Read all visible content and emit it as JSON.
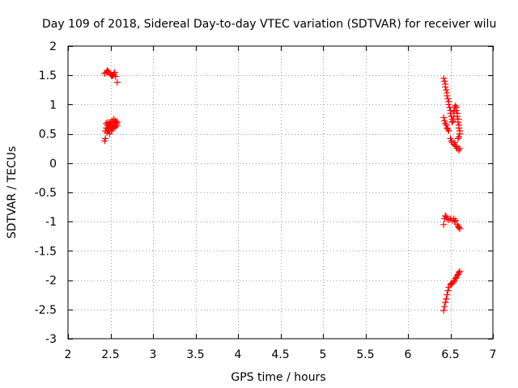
{
  "chart_data": {
    "type": "scatter",
    "title": "Day 109 of 2018, Sidereal Day-to-day VTEC variation (SDTVAR) for receiver wilu",
    "xlabel": "GPS time / hours",
    "ylabel": "SDTVAR / TECUs",
    "xlim": [
      2,
      7
    ],
    "ylim": [
      -3,
      2
    ],
    "xticks": [
      2,
      2.5,
      3,
      3.5,
      4,
      4.5,
      5,
      5.5,
      6,
      6.5,
      7
    ],
    "xtick_labels": [
      "2",
      "2.5",
      "3",
      "3.5",
      "4",
      "4.5",
      "5",
      "5.5",
      "6",
      "6.5",
      "7"
    ],
    "yticks": [
      2,
      1.5,
      1,
      0.5,
      0,
      -0.5,
      -1,
      -1.5,
      -2,
      -2.5,
      -3
    ],
    "ytick_labels": [
      "2",
      "1.5",
      "1",
      "0.5",
      "0",
      "-0.5",
      "-1",
      "-1.5",
      "-2",
      "-2.5",
      "-3"
    ],
    "grid": true,
    "marker": "+",
    "marker_color": "#ff0000",
    "series": [
      {
        "name": "SDTVAR",
        "points": [
          [
            2.43,
            1.53
          ],
          [
            2.45,
            1.55
          ],
          [
            2.46,
            1.58
          ],
          [
            2.47,
            1.57
          ],
          [
            2.48,
            1.55
          ],
          [
            2.5,
            1.52
          ],
          [
            2.51,
            1.5
          ],
          [
            2.52,
            1.49
          ],
          [
            2.53,
            1.5
          ],
          [
            2.54,
            1.52
          ],
          [
            2.55,
            1.55
          ],
          [
            2.56,
            1.48
          ],
          [
            2.58,
            1.38
          ],
          [
            2.43,
            0.38
          ],
          [
            2.44,
            0.42
          ],
          [
            2.44,
            0.55
          ],
          [
            2.45,
            0.6
          ],
          [
            2.45,
            0.68
          ],
          [
            2.46,
            0.52
          ],
          [
            2.46,
            0.65
          ],
          [
            2.47,
            0.58
          ],
          [
            2.47,
            0.7
          ],
          [
            2.48,
            0.55
          ],
          [
            2.48,
            0.62
          ],
          [
            2.49,
            0.68
          ],
          [
            2.49,
            0.5
          ],
          [
            2.5,
            0.6
          ],
          [
            2.5,
            0.7
          ],
          [
            2.51,
            0.55
          ],
          [
            2.51,
            0.65
          ],
          [
            2.52,
            0.58
          ],
          [
            2.52,
            0.72
          ],
          [
            2.53,
            0.62
          ],
          [
            2.53,
            0.68
          ],
          [
            2.54,
            0.6
          ],
          [
            2.54,
            0.75
          ],
          [
            2.55,
            0.65
          ],
          [
            2.55,
            0.7
          ],
          [
            2.56,
            0.62
          ],
          [
            2.56,
            0.72
          ],
          [
            2.57,
            0.68
          ],
          [
            2.58,
            0.7
          ],
          [
            2.58,
            0.65
          ],
          [
            6.42,
            1.45
          ],
          [
            6.43,
            1.4
          ],
          [
            6.44,
            1.35
          ],
          [
            6.44,
            1.3
          ],
          [
            6.45,
            1.25
          ],
          [
            6.46,
            1.2
          ],
          [
            6.46,
            1.15
          ],
          [
            6.47,
            1.1
          ],
          [
            6.48,
            1.05
          ],
          [
            6.48,
            1.0
          ],
          [
            6.49,
            0.95
          ],
          [
            6.5,
            0.9
          ],
          [
            6.5,
            0.85
          ],
          [
            6.51,
            0.8
          ],
          [
            6.52,
            0.75
          ],
          [
            6.52,
            0.7
          ],
          [
            6.53,
            0.72
          ],
          [
            6.54,
            0.8
          ],
          [
            6.54,
            0.88
          ],
          [
            6.55,
            0.95
          ],
          [
            6.56,
            0.98
          ],
          [
            6.57,
            0.95
          ],
          [
            6.57,
            0.9
          ],
          [
            6.58,
            0.85
          ],
          [
            6.58,
            0.8
          ],
          [
            6.59,
            0.75
          ],
          [
            6.59,
            0.7
          ],
          [
            6.6,
            0.65
          ],
          [
            6.6,
            0.6
          ],
          [
            6.61,
            0.55
          ],
          [
            6.61,
            0.5
          ],
          [
            6.6,
            0.45
          ],
          [
            6.59,
            0.42
          ],
          [
            6.42,
            0.78
          ],
          [
            6.43,
            0.72
          ],
          [
            6.44,
            0.68
          ],
          [
            6.45,
            0.65
          ],
          [
            6.46,
            0.6
          ],
          [
            6.47,
            0.58
          ],
          [
            6.48,
            0.55
          ],
          [
            6.5,
            0.42
          ],
          [
            6.51,
            0.38
          ],
          [
            6.52,
            0.35
          ],
          [
            6.54,
            0.32
          ],
          [
            6.55,
            0.35
          ],
          [
            6.56,
            0.3
          ],
          [
            6.57,
            0.28
          ],
          [
            6.58,
            0.25
          ],
          [
            6.6,
            0.22
          ],
          [
            6.61,
            0.25
          ],
          [
            6.42,
            -1.05
          ],
          [
            6.43,
            -0.95
          ],
          [
            6.44,
            -0.9
          ],
          [
            6.45,
            -0.92
          ],
          [
            6.46,
            -0.95
          ],
          [
            6.48,
            -0.97
          ],
          [
            6.5,
            -0.95
          ],
          [
            6.52,
            -0.98
          ],
          [
            6.54,
            -0.95
          ],
          [
            6.55,
            -1.0
          ],
          [
            6.56,
            -0.98
          ],
          [
            6.58,
            -1.05
          ],
          [
            6.59,
            -1.08
          ],
          [
            6.6,
            -1.1
          ],
          [
            6.61,
            -1.12
          ],
          [
            6.42,
            -2.52
          ],
          [
            6.43,
            -2.45
          ],
          [
            6.44,
            -2.38
          ],
          [
            6.45,
            -2.32
          ],
          [
            6.46,
            -2.25
          ],
          [
            6.47,
            -2.18
          ],
          [
            6.48,
            -2.12
          ],
          [
            6.5,
            -2.08
          ],
          [
            6.51,
            -2.06
          ],
          [
            6.52,
            -2.05
          ],
          [
            6.54,
            -2.03
          ],
          [
            6.55,
            -2.0
          ],
          [
            6.56,
            -1.97
          ],
          [
            6.57,
            -1.95
          ],
          [
            6.58,
            -1.92
          ],
          [
            6.59,
            -1.9
          ],
          [
            6.6,
            -1.87
          ],
          [
            6.61,
            -1.85
          ]
        ]
      }
    ]
  }
}
